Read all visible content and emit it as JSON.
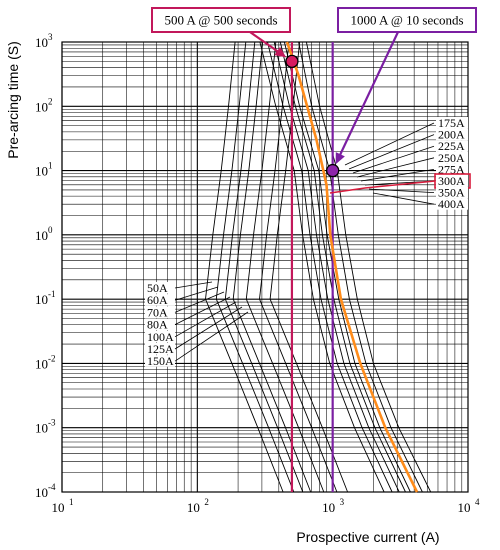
{
  "chart_data": {
    "type": "line",
    "title": "",
    "xlabel": "Prospective current (A)",
    "ylabel": "Pre-arcing time (S)",
    "x_scale": "log",
    "y_scale": "log",
    "xlim": [
      10,
      10000
    ],
    "ylim": [
      0.0001,
      1000
    ],
    "x_ticks": [
      {
        "base": "10",
        "exp": "1",
        "value": 10
      },
      {
        "base": "10",
        "exp": "2",
        "value": 100
      },
      {
        "base": "10",
        "exp": "3",
        "value": 1000
      },
      {
        "base": "10",
        "exp": "4",
        "value": 10000
      }
    ],
    "y_ticks": [
      {
        "base": "10",
        "exp": "-4",
        "value": 0.0001
      },
      {
        "base": "10",
        "exp": "-3",
        "value": 0.001
      },
      {
        "base": "10",
        "exp": "-2",
        "value": 0.01
      },
      {
        "base": "10",
        "exp": "-1",
        "value": 0.1
      },
      {
        "base": "10",
        "exp": "0",
        "value": 1
      },
      {
        "base": "10",
        "exp": "1",
        "value": 10
      },
      {
        "base": "10",
        "exp": "2",
        "value": 100
      },
      {
        "base": "10",
        "exp": "3",
        "value": 1000
      }
    ],
    "grid": true,
    "low_ratings": [
      "50A",
      "60A",
      "70A",
      "80A",
      "100A",
      "125A",
      "150A"
    ],
    "high_ratings": [
      "175A",
      "200A",
      "225A",
      "250A",
      "275A",
      "300A",
      "350A",
      "400A"
    ],
    "highlighted_rating": "300A",
    "series": [
      {
        "name": "50A",
        "points": [
          [
            190,
            1000
          ],
          [
            170,
            100
          ],
          [
            150,
            10
          ],
          [
            130,
            1
          ],
          [
            115,
            0.1
          ],
          [
            180,
            0.01
          ],
          [
            280,
            0.001
          ],
          [
            430,
            0.0001
          ]
        ]
      },
      {
        "name": "60A",
        "points": [
          [
            228,
            1000
          ],
          [
            204,
            100
          ],
          [
            180,
            10
          ],
          [
            156,
            1
          ],
          [
            138,
            0.1
          ],
          [
            216,
            0.01
          ],
          [
            336,
            0.001
          ],
          [
            516,
            0.0001
          ]
        ]
      },
      {
        "name": "70A",
        "points": [
          [
            266,
            1000
          ],
          [
            238,
            100
          ],
          [
            210,
            10
          ],
          [
            182,
            1
          ],
          [
            161,
            0.1
          ],
          [
            252,
            0.01
          ],
          [
            392,
            0.001
          ],
          [
            602,
            0.0001
          ]
        ]
      },
      {
        "name": "80A",
        "points": [
          [
            304,
            1000
          ],
          [
            272,
            100
          ],
          [
            240,
            10
          ],
          [
            208,
            1
          ],
          [
            184,
            0.1
          ],
          [
            288,
            0.01
          ],
          [
            448,
            0.001
          ],
          [
            688,
            0.0001
          ]
        ]
      },
      {
        "name": "100A",
        "points": [
          [
            380,
            1000
          ],
          [
            340,
            100
          ],
          [
            300,
            10
          ],
          [
            260,
            1
          ],
          [
            230,
            0.1
          ],
          [
            360,
            0.01
          ],
          [
            560,
            0.001
          ],
          [
            860,
            0.0001
          ]
        ]
      },
      {
        "name": "125A",
        "points": [
          [
            475,
            1000
          ],
          [
            425,
            100
          ],
          [
            375,
            10
          ],
          [
            325,
            1
          ],
          [
            288,
            0.1
          ],
          [
            450,
            0.01
          ],
          [
            700,
            0.001
          ],
          [
            1075,
            0.0001
          ]
        ]
      },
      {
        "name": "150A",
        "points": [
          [
            570,
            1000
          ],
          [
            510,
            100
          ],
          [
            450,
            10
          ],
          [
            390,
            1
          ],
          [
            345,
            0.1
          ],
          [
            540,
            0.01
          ],
          [
            840,
            0.001
          ],
          [
            1290,
            0.0001
          ]
        ]
      },
      {
        "name": "175A",
        "points": [
          [
            290,
            1000
          ],
          [
            380,
            100
          ],
          [
            520,
            10
          ],
          [
            600,
            1
          ],
          [
            720,
            0.1
          ],
          [
            950,
            0.01
          ],
          [
            1450,
            0.001
          ],
          [
            2400,
            0.0001
          ]
        ]
      },
      {
        "name": "200A",
        "points": [
          [
            330,
            1000
          ],
          [
            430,
            100
          ],
          [
            590,
            10
          ],
          [
            680,
            1
          ],
          [
            820,
            0.1
          ],
          [
            1080,
            0.01
          ],
          [
            1650,
            0.001
          ],
          [
            2750,
            0.0001
          ]
        ]
      },
      {
        "name": "225A",
        "points": [
          [
            370,
            1000
          ],
          [
            480,
            100
          ],
          [
            660,
            10
          ],
          [
            760,
            1
          ],
          [
            920,
            0.1
          ],
          [
            1210,
            0.01
          ],
          [
            1850,
            0.001
          ],
          [
            3100,
            0.0001
          ]
        ]
      },
      {
        "name": "250A",
        "points": [
          [
            410,
            1000
          ],
          [
            530,
            100
          ],
          [
            730,
            10
          ],
          [
            840,
            1
          ],
          [
            1020,
            0.1
          ],
          [
            1340,
            0.01
          ],
          [
            2050,
            0.001
          ],
          [
            3450,
            0.0001
          ]
        ]
      },
      {
        "name": "275A",
        "points": [
          [
            440,
            1000
          ],
          [
            570,
            100
          ],
          [
            790,
            10
          ],
          [
            910,
            1
          ],
          [
            1110,
            0.1
          ],
          [
            1460,
            0.01
          ],
          [
            2230,
            0.001
          ],
          [
            3750,
            0.0001
          ]
        ]
      },
      {
        "name": "300A",
        "points": [
          [
            460,
            1000
          ],
          [
            560,
            300
          ],
          [
            760,
            30
          ],
          [
            900,
            6
          ],
          [
            960,
            1
          ],
          [
            1150,
            0.1
          ],
          [
            1600,
            0.01
          ],
          [
            2450,
            0.001
          ],
          [
            4200,
            0.0001
          ]
        ]
      },
      {
        "name": "350A",
        "points": [
          [
            560,
            1000
          ],
          [
            700,
            100
          ],
          [
            950,
            10
          ],
          [
            1100,
            1
          ],
          [
            1330,
            0.1
          ],
          [
            1760,
            0.01
          ],
          [
            2700,
            0.001
          ],
          [
            4600,
            0.0001
          ]
        ]
      },
      {
        "name": "400A",
        "points": [
          [
            640,
            1000
          ],
          [
            800,
            100
          ],
          [
            1080,
            10
          ],
          [
            1250,
            1
          ],
          [
            1520,
            0.1
          ],
          [
            2000,
            0.01
          ],
          [
            3080,
            0.001
          ],
          [
            5300,
            0.0001
          ]
        ]
      }
    ],
    "vertical_markers": [
      {
        "x": 500,
        "color": "#c2185b"
      },
      {
        "x": 1000,
        "color": "#7b1fa2"
      }
    ],
    "annotations": [
      {
        "text": "500 A @ 500 seconds",
        "x": 500,
        "y": 500,
        "color": "#c2185b",
        "marker_fill": "#d81b60"
      },
      {
        "text": "1000 A @ 10 seconds",
        "x": 1000,
        "y": 10,
        "color": "#7b1fa2",
        "marker_fill": "#8e24aa"
      }
    ],
    "highlight_color": "#ff8c1a"
  }
}
